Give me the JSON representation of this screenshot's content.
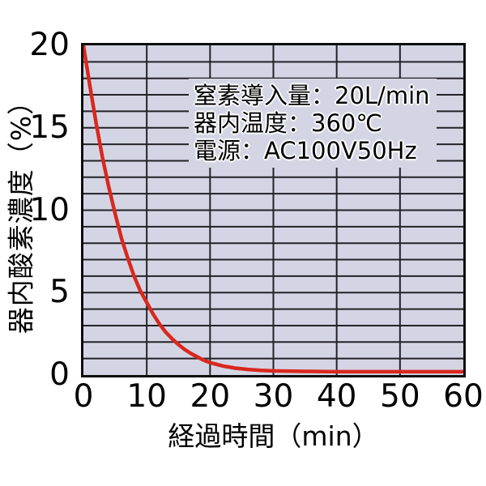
{
  "chart_data": {
    "type": "line",
    "title": "",
    "xlabel": "経過時間（min）",
    "ylabel": "器内酸素濃度（%）",
    "xlim": [
      0,
      60
    ],
    "ylim": [
      0,
      20
    ],
    "x_ticks": [
      0,
      10,
      20,
      30,
      40,
      50,
      60
    ],
    "y_ticks": [
      0,
      5,
      10,
      15,
      20
    ],
    "x_grid_step": 10,
    "y_grid_step": 1,
    "grid": true,
    "legend_position": "none",
    "series": [
      {
        "name": "器内酸素濃度",
        "color": "#d9281e",
        "x": [
          0,
          1,
          2,
          3,
          4,
          5,
          6,
          7,
          8,
          9,
          10,
          11,
          12,
          13,
          14,
          15,
          16,
          17,
          18,
          19,
          20,
          22,
          24,
          26,
          28,
          30,
          35,
          40,
          45,
          50,
          55,
          60
        ],
        "y": [
          20,
          17.6,
          15.3,
          13.2,
          11.4,
          9.8,
          8.3,
          7.1,
          6.0,
          5.1,
          4.4,
          3.7,
          3.1,
          2.6,
          2.2,
          1.85,
          1.55,
          1.3,
          1.1,
          0.9,
          0.75,
          0.55,
          0.42,
          0.34,
          0.28,
          0.25,
          0.22,
          0.2,
          0.2,
          0.2,
          0.2,
          0.2
        ]
      }
    ],
    "annotation_lines": [
      "窒素導入量：20L/min",
      "器内温度：360℃",
      "電源：AC100V50Hz"
    ]
  },
  "colors": {
    "page_background": "#ffffff",
    "plot_background": "#d4d5e4",
    "grid": "#222228",
    "axis_border": "#0d0d0d",
    "curve": "#d9281e",
    "text": "#000000",
    "annotation_background": "#d4d5e4"
  }
}
